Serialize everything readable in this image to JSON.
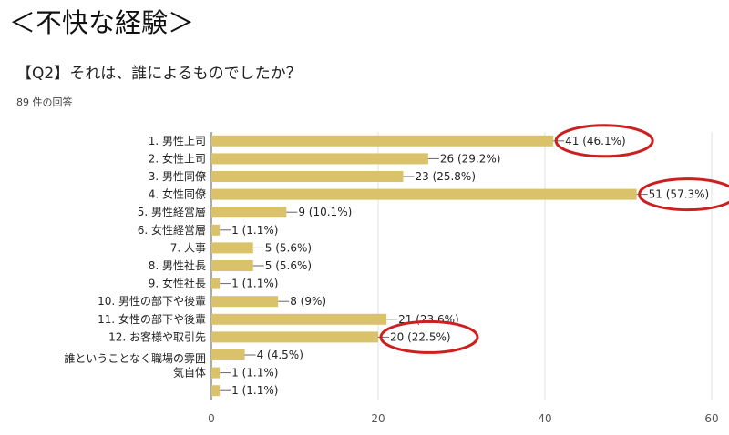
{
  "header": {
    "title": "＜不快な経験＞",
    "question": "【Q2】それは、誰によるものでしたか？",
    "response_count": "89 件の回答"
  },
  "colors": {
    "bar": "#d9c269",
    "grid": "#e2e2e2",
    "highlight": "#cc1f1f"
  },
  "chart_data": {
    "type": "bar",
    "orientation": "horizontal",
    "title": "【Q2】それは、誰によるものでしたか？",
    "categories": [
      "1.  男性上司",
      "2.  女性上司",
      "3.  男性同僚",
      "4.  女性同僚",
      "5.  男性経営層",
      "6.  女性経営層",
      "7.    人事",
      "8.  男性社長",
      "9.  女性社長",
      "10.  男性の部下や後輩",
      "11.  女性の部下や後輩",
      "12.  お客様や取引先",
      "誰ということなく職場の雰囲",
      "気自体",
      ""
    ],
    "values": [
      41,
      26,
      23,
      51,
      9,
      1,
      5,
      5,
      1,
      8,
      21,
      20,
      4,
      1,
      1
    ],
    "value_labels": [
      "41 (46.1%)",
      "26 (29.2%)",
      "23 (25.8%)",
      "51 (57.3%)",
      "9 (10.1%)",
      "1 (1.1%)",
      "5 (5.6%)",
      "5 (5.6%)",
      "1 (1.1%)",
      "8 (9%)",
      "21 (23.6%)",
      "20 (22.5%)",
      "4 (4.5%)",
      "1 (1.1%)",
      "1 (1.1%)"
    ],
    "highlighted": [
      0,
      3,
      11
    ],
    "xlim": [
      0,
      60
    ],
    "xticks": [
      0,
      20,
      40,
      60
    ],
    "grid": true
  }
}
